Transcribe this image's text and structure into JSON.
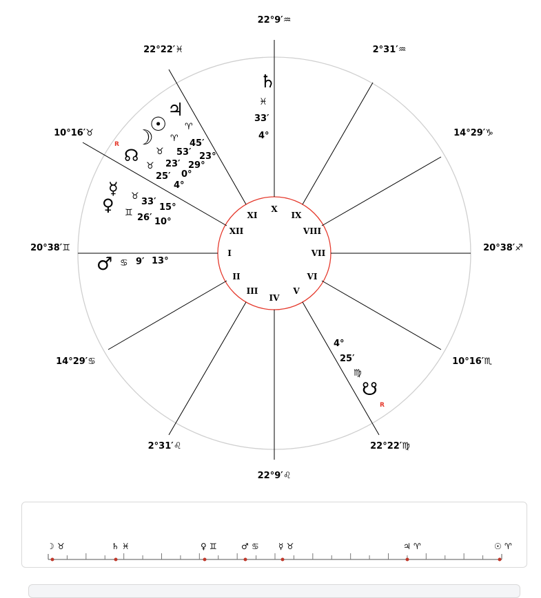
{
  "cusps": [
    {
      "id": "I",
      "label": "20°38′♊"
    },
    {
      "id": "II",
      "label": "14°29′♋"
    },
    {
      "id": "III",
      "label": "2°31′♌"
    },
    {
      "id": "IV",
      "label": "22°9′♌"
    },
    {
      "id": "V",
      "label": "22°22′♍"
    },
    {
      "id": "VI",
      "label": "10°16′♏"
    },
    {
      "id": "VII",
      "label": "20°38′♐"
    },
    {
      "id": "VIII",
      "label": "14°29′♑"
    },
    {
      "id": "IX",
      "label": "2°31′♒"
    },
    {
      "id": "X",
      "label": "22°9′♒"
    },
    {
      "id": "XI",
      "label": "22°22′♓"
    },
    {
      "id": "XII",
      "label": "10°16′♉"
    }
  ],
  "houses": [
    "I",
    "II",
    "III",
    "IV",
    "V",
    "VI",
    "VII",
    "VIII",
    "IX",
    "X",
    "XI",
    "XII"
  ],
  "planets": [
    {
      "name": "saturn",
      "glyph": "♄",
      "sign": "♓",
      "deg": "4°",
      "min": "33′"
    },
    {
      "name": "jupiter",
      "glyph": "♃",
      "sign": "♈",
      "deg": "23°",
      "min": "45′"
    },
    {
      "name": "sun",
      "glyph": "☉",
      "sign": "♈",
      "deg": "29°",
      "min": "53′"
    },
    {
      "name": "moon",
      "glyph": "☽",
      "sign": "♉",
      "deg": "0°",
      "min": "23′"
    },
    {
      "name": "node",
      "glyph": "☊",
      "sign": "♉",
      "deg": "4°",
      "min": "25′",
      "retro": "R"
    },
    {
      "name": "mercury",
      "glyph": "☿",
      "sign": "♉",
      "deg": "15°",
      "min": "33′"
    },
    {
      "name": "venus",
      "glyph": "♀",
      "sign": "♊",
      "deg": "10°",
      "min": "26′"
    },
    {
      "name": "mars",
      "glyph": "♂",
      "sign": "♋",
      "deg": "13°",
      "min": "9′"
    },
    {
      "name": "southnode",
      "glyph": "☋",
      "sign": "♍",
      "deg": "4°",
      "min": "25′",
      "retro": "R"
    }
  ],
  "strip": [
    {
      "name": "moon",
      "glyph": "☽",
      "sign": "♉"
    },
    {
      "name": "saturn",
      "glyph": "♄",
      "sign": "♓"
    },
    {
      "name": "venus",
      "glyph": "♀",
      "sign": "♊"
    },
    {
      "name": "mars",
      "glyph": "♂",
      "sign": "♋"
    },
    {
      "name": "mercury",
      "glyph": "☿",
      "sign": "♉"
    },
    {
      "name": "jupiter",
      "glyph": "♃",
      "sign": "♈"
    },
    {
      "name": "sun",
      "glyph": "☉",
      "sign": "♈"
    }
  ],
  "colors": {
    "inner_circle": "#e5392c",
    "outer_circle": "#cfcfcf",
    "marker": "#c0392b",
    "lines": "#000000"
  }
}
